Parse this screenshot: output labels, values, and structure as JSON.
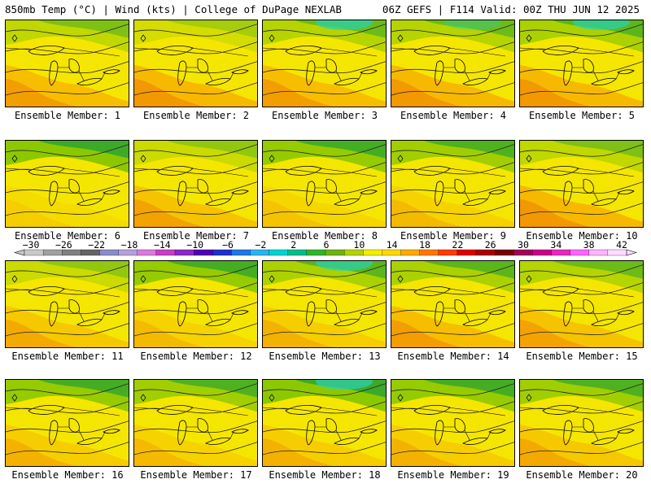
{
  "header": {
    "left_title": "850mb Temp (°C) | Wind (kts) | College of DuPage NEXLAB",
    "right_title": "06Z GEFS | F114 Valid: 00Z THU JUN 12 2025"
  },
  "colorbar": {
    "labels": [
      "−30",
      "−26",
      "−22",
      "−18",
      "−14",
      "−10",
      "−6",
      "−2",
      "2",
      "6",
      "10",
      "14",
      "18",
      "22",
      "26",
      "30",
      "34",
      "38",
      "42"
    ],
    "colors": [
      "#c8c8c8",
      "#a0a0a0",
      "#808080",
      "#646464",
      "#8c8cc8",
      "#b4a0dc",
      "#dc78dc",
      "#c83cc8",
      "#8c28c8",
      "#5000b4",
      "#1e32c8",
      "#1e78e6",
      "#28b4f0",
      "#00d2d2",
      "#00be8c",
      "#32b428",
      "#6eb414",
      "#b4d200",
      "#f0f000",
      "#ffd700",
      "#ffaa00",
      "#ff7800",
      "#ff3c00",
      "#dc0000",
      "#aa0000",
      "#780000",
      "#a0005a",
      "#c8008c",
      "#e628be",
      "#ff64ff",
      "#ffb4ff",
      "#ffdcff"
    ]
  },
  "members": [
    {
      "label": "Ensemble Member: 1"
    },
    {
      "label": "Ensemble Member: 2"
    },
    {
      "label": "Ensemble Member: 3"
    },
    {
      "label": "Ensemble Member: 4"
    },
    {
      "label": "Ensemble Member: 5"
    },
    {
      "label": "Ensemble Member: 6"
    },
    {
      "label": "Ensemble Member: 7"
    },
    {
      "label": "Ensemble Member: 8"
    },
    {
      "label": "Ensemble Member: 9"
    },
    {
      "label": "Ensemble Member: 10"
    },
    {
      "label": "Ensemble Member: 11"
    },
    {
      "label": "Ensemble Member: 12"
    },
    {
      "label": "Ensemble Member: 13"
    },
    {
      "label": "Ensemble Member: 14"
    },
    {
      "label": "Ensemble Member: 15"
    },
    {
      "label": "Ensemble Member: 16"
    },
    {
      "label": "Ensemble Member: 17"
    },
    {
      "label": "Ensemble Member: 18"
    },
    {
      "label": "Ensemble Member: 19"
    },
    {
      "label": "Ensemble Member: 20"
    }
  ]
}
